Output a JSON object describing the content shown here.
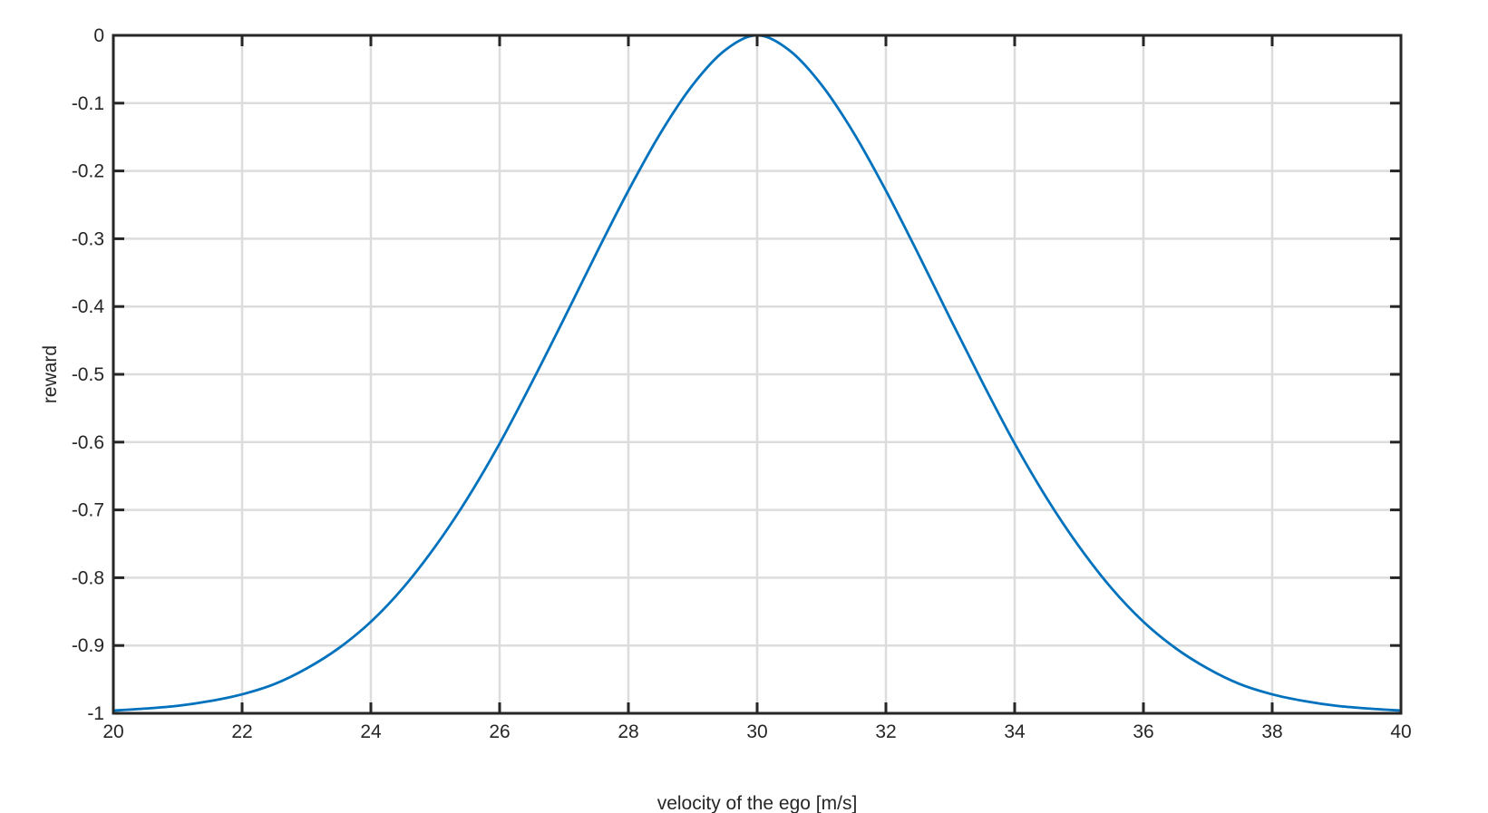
{
  "chart_data": {
    "type": "line",
    "title": "",
    "xlabel": "velocity of the ego [m/s]",
    "ylabel": "reward",
    "xlim": [
      20,
      40
    ],
    "ylim": [
      -1,
      0
    ],
    "grid": true,
    "x_ticks": [
      20,
      22,
      24,
      26,
      28,
      30,
      32,
      34,
      36,
      38,
      40
    ],
    "x_tick_labels": [
      "20",
      "22",
      "24",
      "26",
      "28",
      "30",
      "32",
      "34",
      "36",
      "38",
      "40"
    ],
    "y_ticks": [
      0,
      -0.1,
      -0.2,
      -0.3,
      -0.4,
      -0.5,
      -0.6,
      -0.7,
      -0.8,
      -0.9,
      -1
    ],
    "y_tick_labels": [
      "0",
      "-0.1",
      "-0.2",
      "-0.3",
      "-0.4",
      "-0.5",
      "-0.6",
      "-0.7",
      "-0.8",
      "-0.9",
      "-1"
    ],
    "colors": {
      "series": "#0072bd",
      "axis": "#262626",
      "grid": "#dcdcdc"
    },
    "series": [
      {
        "x": [
          20,
          20.5,
          21,
          21.5,
          22,
          22.5,
          23,
          23.5,
          24,
          24.5,
          25,
          25.5,
          26,
          26.5,
          27,
          27.5,
          28,
          28.5,
          29,
          29.5,
          30,
          30.5,
          31,
          31.5,
          32,
          32.5,
          33,
          33.5,
          34,
          34.5,
          35,
          35.5,
          36,
          36.5,
          37,
          37.5,
          38,
          38.5,
          39,
          39.5,
          40
        ],
        "y": [
          -0.996,
          -0.993,
          -0.989,
          -0.982,
          -0.972,
          -0.957,
          -0.934,
          -0.904,
          -0.865,
          -0.815,
          -0.754,
          -0.683,
          -0.602,
          -0.512,
          -0.418,
          -0.322,
          -0.229,
          -0.144,
          -0.073,
          -0.022,
          0,
          -0.022,
          -0.073,
          -0.144,
          -0.229,
          -0.322,
          -0.418,
          -0.512,
          -0.602,
          -0.683,
          -0.754,
          -0.815,
          -0.865,
          -0.904,
          -0.934,
          -0.957,
          -0.972,
          -0.982,
          -0.989,
          -0.993,
          -0.996
        ]
      }
    ]
  }
}
